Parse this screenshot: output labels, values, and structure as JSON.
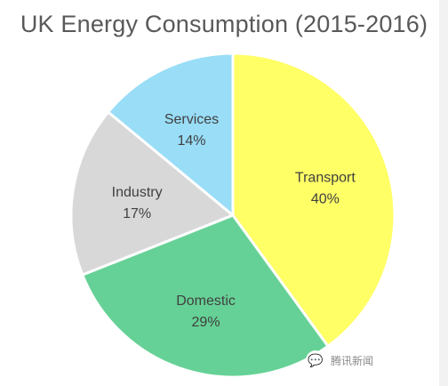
{
  "chart_data": {
    "type": "pie",
    "title": "UK Energy Consumption (2015-2016)",
    "slices": [
      {
        "label": "Transport",
        "value": 40,
        "value_label": "40%",
        "color": "#ffff66"
      },
      {
        "label": "Domestic",
        "value": 29,
        "value_label": "29%",
        "color": "#66d196"
      },
      {
        "label": "Industry",
        "value": 17,
        "value_label": "17%",
        "color": "#d8d8d8"
      },
      {
        "label": "Services",
        "value": 14,
        "value_label": "14%",
        "color": "#99ddf7"
      }
    ],
    "start_angle_deg": 0,
    "direction": "clockwise",
    "legend": "none"
  },
  "watermark": {
    "text": "腾讯新闻",
    "icon": "chat-bubble-icon"
  }
}
